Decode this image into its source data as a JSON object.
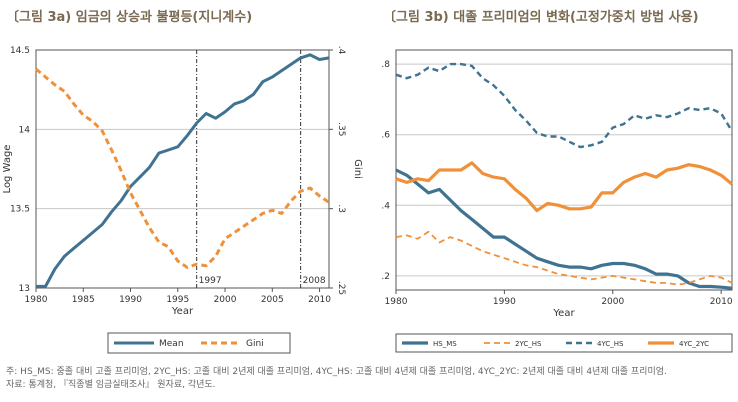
{
  "titles": {
    "a": "〔그림 3a) 임금의 상승과 불평등(지니계수)",
    "b": "〔그림 3b) 대졸 프리미엄의 변화(고정가중치 방법 사용)"
  },
  "notes": {
    "line1": "주: HS_MS: 중졸 대비 고졸 프리미엄, 2YC_HS: 고졸 대비 2년제 대졸 프리미엄, 4YC_HS: 고졸 대비 4년제 대졸 프리미엄, 4YC_2YC: 2년제 대졸 대비 4년제 대졸 프리미엄.",
    "line2": "자료: 통계청, 『직종별 임금실태조사』 원자료, 각년도."
  },
  "colors": {
    "blue": "#3f7391",
    "orange": "#f0913a",
    "grid": "#c8c8c8"
  },
  "chart_data": [
    {
      "type": "line",
      "xlabel": "Year",
      "ylabel": "Log Wage",
      "y2label": "Gini",
      "xlim": [
        1980,
        2011
      ],
      "ylim": [
        13,
        14.5
      ],
      "y2lim": [
        0.25,
        0.4
      ],
      "xticks": [
        1980,
        1985,
        1990,
        1995,
        2000,
        2005,
        2010
      ],
      "yticks": [
        13,
        13.5,
        14,
        14.5
      ],
      "yticklabels": [
        "13",
        "13.5",
        "14",
        "14.5"
      ],
      "y2ticks": [
        0.25,
        0.3,
        0.35,
        0.4
      ],
      "y2ticklabels": [
        ".25",
        ".3",
        ".35",
        ".4"
      ],
      "grid": true,
      "legend": "bottom",
      "annotations": [
        {
          "x": 1997,
          "label": "1997"
        },
        {
          "x": 2008,
          "label": "2008"
        }
      ],
      "series": [
        {
          "name": "Mean",
          "color": "#3f7391",
          "dash": false,
          "axis": "left",
          "x": [
            1980,
            1981,
            1982,
            1983,
            1984,
            1985,
            1986,
            1987,
            1988,
            1989,
            1990,
            1991,
            1992,
            1993,
            1994,
            1995,
            1996,
            1997,
            1998,
            1999,
            2000,
            2001,
            2002,
            2003,
            2004,
            2005,
            2006,
            2007,
            2008,
            2009,
            2010,
            2011
          ],
          "y": [
            13.01,
            13.01,
            13.12,
            13.2,
            13.25,
            13.3,
            13.35,
            13.4,
            13.48,
            13.55,
            13.64,
            13.7,
            13.76,
            13.85,
            13.87,
            13.89,
            13.96,
            14.04,
            14.1,
            14.07,
            14.11,
            14.16,
            14.18,
            14.22,
            14.3,
            14.33,
            14.37,
            14.41,
            14.45,
            14.47,
            14.44,
            14.45
          ]
        },
        {
          "name": "Gini",
          "color": "#f0913a",
          "dash": true,
          "axis": "right",
          "x": [
            1980,
            1981,
            1982,
            1983,
            1984,
            1985,
            1986,
            1987,
            1988,
            1989,
            1990,
            1991,
            1992,
            1993,
            1994,
            1995,
            1996,
            1997,
            1998,
            1999,
            2000,
            2001,
            2002,
            2003,
            2004,
            2005,
            2006,
            2007,
            2008,
            2009,
            2010,
            2011
          ],
          "y": [
            0.388,
            0.383,
            0.378,
            0.374,
            0.366,
            0.359,
            0.355,
            0.349,
            0.337,
            0.324,
            0.31,
            0.299,
            0.288,
            0.279,
            0.276,
            0.267,
            0.263,
            0.265,
            0.264,
            0.27,
            0.281,
            0.285,
            0.289,
            0.293,
            0.297,
            0.299,
            0.297,
            0.305,
            0.311,
            0.313,
            0.308,
            0.304
          ]
        }
      ]
    },
    {
      "type": "line",
      "xlabel": "Year",
      "ylabel": "",
      "xlim": [
        1980,
        2011
      ],
      "ylim": [
        0.16,
        0.84
      ],
      "xticks": [
        1980,
        1990,
        2000,
        2010
      ],
      "yticks": [
        0.2,
        0.4,
        0.6,
        0.8
      ],
      "yticklabels": [
        ".2",
        ".4",
        ".6",
        ".8"
      ],
      "grid": true,
      "legend": "bottom",
      "series": [
        {
          "name": "HS_MS",
          "color": "#3f7391",
          "dash": false,
          "width": 3.2,
          "x": [
            1980,
            1981,
            1982,
            1983,
            1984,
            1985,
            1986,
            1987,
            1988,
            1989,
            1990,
            1991,
            1992,
            1993,
            1994,
            1995,
            1996,
            1997,
            1998,
            1999,
            2000,
            2001,
            2002,
            2003,
            2004,
            2005,
            2006,
            2007,
            2008,
            2009,
            2010,
            2011
          ],
          "y": [
            0.5,
            0.485,
            0.46,
            0.435,
            0.445,
            0.415,
            0.385,
            0.36,
            0.335,
            0.31,
            0.31,
            0.29,
            0.27,
            0.25,
            0.24,
            0.23,
            0.225,
            0.225,
            0.22,
            0.23,
            0.235,
            0.235,
            0.23,
            0.22,
            0.205,
            0.205,
            0.2,
            0.18,
            0.17,
            0.17,
            0.168,
            0.165
          ]
        },
        {
          "name": "2YC_HS",
          "color": "#f0913a",
          "dash": true,
          "width": 1.8,
          "x": [
            1980,
            1981,
            1982,
            1983,
            1984,
            1985,
            1986,
            1987,
            1988,
            1989,
            1990,
            1991,
            1992,
            1993,
            1994,
            1995,
            1996,
            1997,
            1998,
            1999,
            2000,
            2001,
            2002,
            2003,
            2004,
            2005,
            2006,
            2007,
            2008,
            2009,
            2010,
            2011
          ],
          "y": [
            0.31,
            0.315,
            0.305,
            0.325,
            0.295,
            0.31,
            0.3,
            0.285,
            0.27,
            0.26,
            0.25,
            0.24,
            0.23,
            0.225,
            0.215,
            0.205,
            0.2,
            0.195,
            0.19,
            0.195,
            0.2,
            0.195,
            0.19,
            0.185,
            0.18,
            0.18,
            0.175,
            0.18,
            0.19,
            0.2,
            0.195,
            0.18
          ]
        },
        {
          "name": "4YC_HS",
          "color": "#3f7391",
          "dash": true,
          "width": 2.4,
          "x": [
            1980,
            1981,
            1982,
            1983,
            1984,
            1985,
            1986,
            1987,
            1988,
            1989,
            1990,
            1991,
            1992,
            1993,
            1994,
            1995,
            1996,
            1997,
            1998,
            1999,
            2000,
            2001,
            2002,
            2003,
            2004,
            2005,
            2006,
            2007,
            2008,
            2009,
            2010,
            2011
          ],
          "y": [
            0.77,
            0.76,
            0.77,
            0.79,
            0.78,
            0.8,
            0.8,
            0.795,
            0.76,
            0.74,
            0.71,
            0.67,
            0.64,
            0.605,
            0.595,
            0.595,
            0.58,
            0.565,
            0.57,
            0.58,
            0.62,
            0.63,
            0.655,
            0.645,
            0.655,
            0.65,
            0.66,
            0.675,
            0.67,
            0.675,
            0.66,
            0.61
          ]
        },
        {
          "name": "4YC_2YC",
          "color": "#f0913a",
          "dash": false,
          "width": 3.2,
          "x": [
            1980,
            1981,
            1982,
            1983,
            1984,
            1985,
            1986,
            1987,
            1988,
            1989,
            1990,
            1991,
            1992,
            1993,
            1994,
            1995,
            1996,
            1997,
            1998,
            1999,
            2000,
            2001,
            2002,
            2003,
            2004,
            2005,
            2006,
            2007,
            2008,
            2009,
            2010,
            2011
          ],
          "y": [
            0.475,
            0.465,
            0.475,
            0.47,
            0.5,
            0.5,
            0.5,
            0.52,
            0.49,
            0.48,
            0.475,
            0.445,
            0.42,
            0.385,
            0.405,
            0.4,
            0.39,
            0.39,
            0.395,
            0.435,
            0.435,
            0.465,
            0.48,
            0.49,
            0.48,
            0.5,
            0.505,
            0.515,
            0.51,
            0.5,
            0.485,
            0.46
          ]
        }
      ]
    }
  ]
}
